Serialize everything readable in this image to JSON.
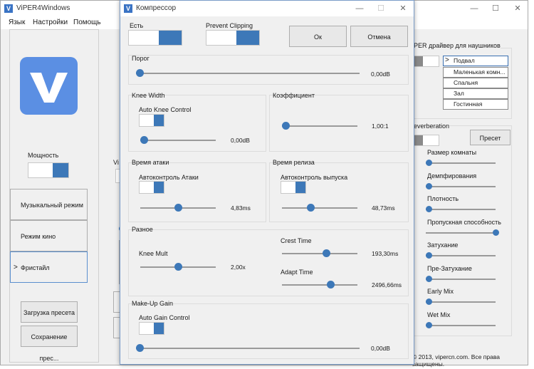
{
  "main_window": {
    "title": "ViPER4Windows",
    "menu": [
      "Язык",
      "Настройки",
      "Помощь"
    ],
    "power_label": "Мощность",
    "modes": [
      "Музыкальный режим",
      "Режим кино",
      "Фристайл"
    ],
    "selected_mode_marker": ">",
    "load_preset": "Загрузка пресета",
    "save_preset": "Сохранение прес...",
    "vi_fragment": "Vi",
    "headphone_driver_label": "PER драйвер для наушников",
    "rooms": [
      "Подвал",
      "Маленькая комн...",
      "Спальня",
      "Зал",
      "Гостинная"
    ],
    "reverberation_label": "everberation",
    "preset_button": "Пресет",
    "reverb_params": [
      {
        "label": "Размер комнаты",
        "level": 0.0
      },
      {
        "label": "Демпфирования",
        "level": 0.0
      },
      {
        "label": "Плотность",
        "level": 0.0
      },
      {
        "label": "Пропускная способность",
        "level": 1.0
      },
      {
        "label": "Затухание",
        "level": 0.0
      },
      {
        "label": "Пре-Затухание",
        "level": 0.0
      },
      {
        "label": "Early Mix",
        "level": 0.0
      },
      {
        "label": "Wet Mix",
        "level": 0.0
      }
    ],
    "copyright": "© 2013, vipercn.com. Все права защищены."
  },
  "compressor": {
    "title": "Компрессор",
    "enabled_label": "Есть",
    "prevent_clipping_label": "Prevent Clipping",
    "ok_button": "Ок",
    "cancel_button": "Отмена",
    "threshold": {
      "label": "Порог",
      "value": "0,00dB",
      "level": 0.0
    },
    "knee_width": {
      "label": "Knee Width",
      "auto_label": "Auto Knee Control",
      "value": "0,00dB",
      "level": 0.0
    },
    "ratio": {
      "label": "Коэффициент",
      "value": "1,00:1",
      "level": 0.0
    },
    "attack": {
      "label": "Время атаки",
      "auto_label": "Автоконтроль Атаки",
      "value": "4,83ms",
      "level": 0.5
    },
    "release": {
      "label": "Время релиза",
      "auto_label": "Автоконтроль выпуска",
      "value": "48,73ms",
      "level": 0.37
    },
    "misc": {
      "label": "Разное",
      "knee_mult": {
        "label": "Knee Mult",
        "value": "2,00x",
        "level": 0.5
      },
      "crest_time": {
        "label": "Crest Time",
        "value": "193,30ms",
        "level": 0.6
      },
      "adapt_time": {
        "label": "Adapt Time",
        "value": "2496,66ms",
        "level": 0.66
      }
    },
    "makeup": {
      "label": "Make-Up Gain",
      "auto_label": "Auto Gain Control",
      "value": "0,00dB",
      "level": 0.0
    }
  },
  "colors": {
    "accent": "#3d78b8",
    "logo": "#5b8fe3"
  }
}
